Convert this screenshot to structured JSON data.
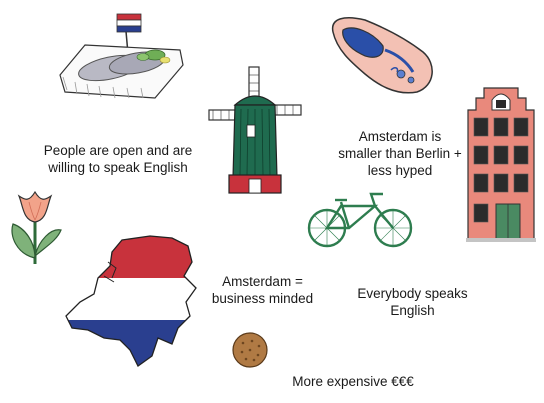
{
  "captions": {
    "open_english": [
      "People are open and are",
      "willing to speak English"
    ],
    "smaller_than_berlin": [
      "Amsterdam is",
      "smaller than Berlin +",
      "less hyped"
    ],
    "business_minded": [
      "Amsterdam =",
      "business minded"
    ],
    "everybody_english": [
      "Everybody speaks",
      "English"
    ],
    "more_expensive": [
      "More expensive €€€"
    ]
  },
  "illustrations": [
    {
      "name": "herring-tray-with-flag",
      "icon": "herring-icon"
    },
    {
      "name": "wooden-clog",
      "icon": "clog-icon"
    },
    {
      "name": "windmill",
      "icon": "windmill-icon"
    },
    {
      "name": "canal-house",
      "icon": "house-icon"
    },
    {
      "name": "tulip",
      "icon": "tulip-icon"
    },
    {
      "name": "bicycle",
      "icon": "bicycle-icon"
    },
    {
      "name": "netherlands-map-flag",
      "icon": "map-icon"
    },
    {
      "name": "stroopwafel-cookie",
      "icon": "cookie-icon"
    }
  ],
  "colors": {
    "dutch_red": "#c8323c",
    "dutch_white": "#ffffff",
    "dutch_blue": "#2a3f8f",
    "windmill_green": "#1f6b4f",
    "house_pink": "#e9897c",
    "bicycle_green": "#2e7d4f"
  }
}
